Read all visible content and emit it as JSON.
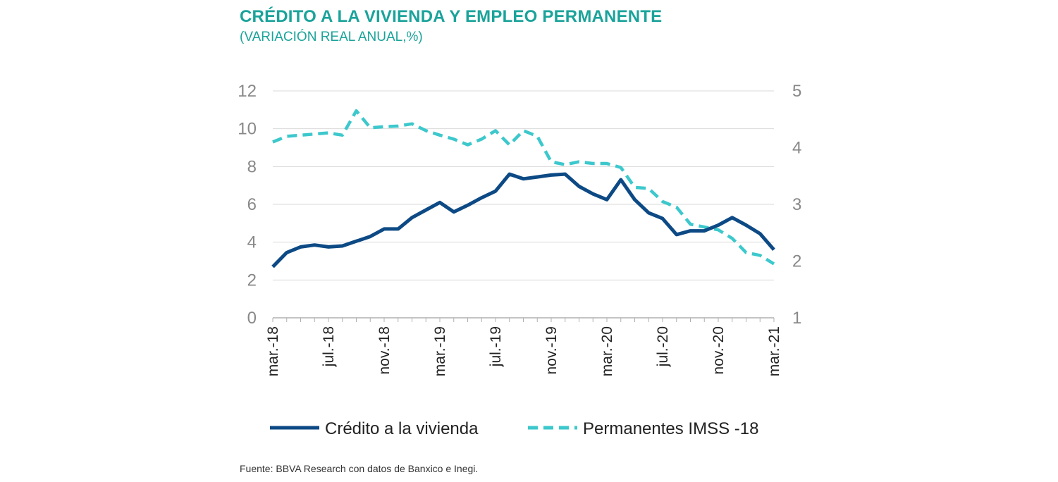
{
  "header": {
    "title": "CRÉDITO A LA VIVIENDA Y EMPLEO PERMANENTE",
    "subtitle": "(VARIACIÓN REAL ANUAL,%)"
  },
  "footer": {
    "source": "Fuente: BBVA Research con datos de Banxico e Inegi."
  },
  "chart_data": {
    "type": "line",
    "x_tick_labels": [
      "mar.-18",
      "jul.-18",
      "nov.-18",
      "mar.-19",
      "jul.-19",
      "nov.-19",
      "mar.-20",
      "jul.-20",
      "nov.-20",
      "mar.-21"
    ],
    "x": [
      "mar.-18",
      "abr.-18",
      "may.-18",
      "jun.-18",
      "jul.-18",
      "ago.-18",
      "sep.-18",
      "oct.-18",
      "nov.-18",
      "dic.-18",
      "ene.-19",
      "feb.-19",
      "mar.-19",
      "abr.-19",
      "may.-19",
      "jun.-19",
      "jul.-19",
      "ago.-19",
      "sep.-19",
      "oct.-19",
      "nov.-19",
      "dic.-19",
      "ene.-20",
      "feb.-20",
      "mar.-20",
      "abr.-20",
      "may.-20",
      "jun.-20",
      "jul.-20",
      "ago.-20",
      "sep.-20",
      "oct.-20",
      "nov.-20",
      "dic.-20",
      "ene.-21",
      "feb.-21",
      "mar.-21"
    ],
    "y_left_ticks": [
      0,
      2,
      4,
      6,
      8,
      10,
      12
    ],
    "y_left_lim": [
      0,
      12
    ],
    "y_right_ticks": [
      1,
      2,
      3,
      4,
      5
    ],
    "y_right_lim": [
      1,
      5
    ],
    "grid": true,
    "legend_position": "bottom",
    "series": [
      {
        "name": "Crédito a la vivienda",
        "axis": "left",
        "color": "#0d4a85",
        "style": "solid",
        "values": [
          2.7,
          3.45,
          3.75,
          3.85,
          3.75,
          3.8,
          4.05,
          4.3,
          4.7,
          4.7,
          5.3,
          5.7,
          6.1,
          5.6,
          5.95,
          6.35,
          6.7,
          7.6,
          7.35,
          7.45,
          7.55,
          7.6,
          6.95,
          6.55,
          6.25,
          7.3,
          6.25,
          5.55,
          5.25,
          4.4,
          4.6,
          4.6,
          4.9,
          5.3,
          4.9,
          4.45,
          3.6
        ]
      },
      {
        "name": "Permanentes IMSS -18",
        "axis": "right",
        "color": "#3cc8cc",
        "style": "dashed",
        "values": [
          4.1,
          4.2,
          4.22,
          4.24,
          4.26,
          4.22,
          4.65,
          4.35,
          4.37,
          4.38,
          4.42,
          4.3,
          4.22,
          4.15,
          4.05,
          4.15,
          4.3,
          4.05,
          4.3,
          4.2,
          3.75,
          3.7,
          3.75,
          3.72,
          3.72,
          3.65,
          3.3,
          3.28,
          3.05,
          2.95,
          2.65,
          2.6,
          2.55,
          2.4,
          2.15,
          2.1,
          1.95
        ]
      }
    ]
  }
}
